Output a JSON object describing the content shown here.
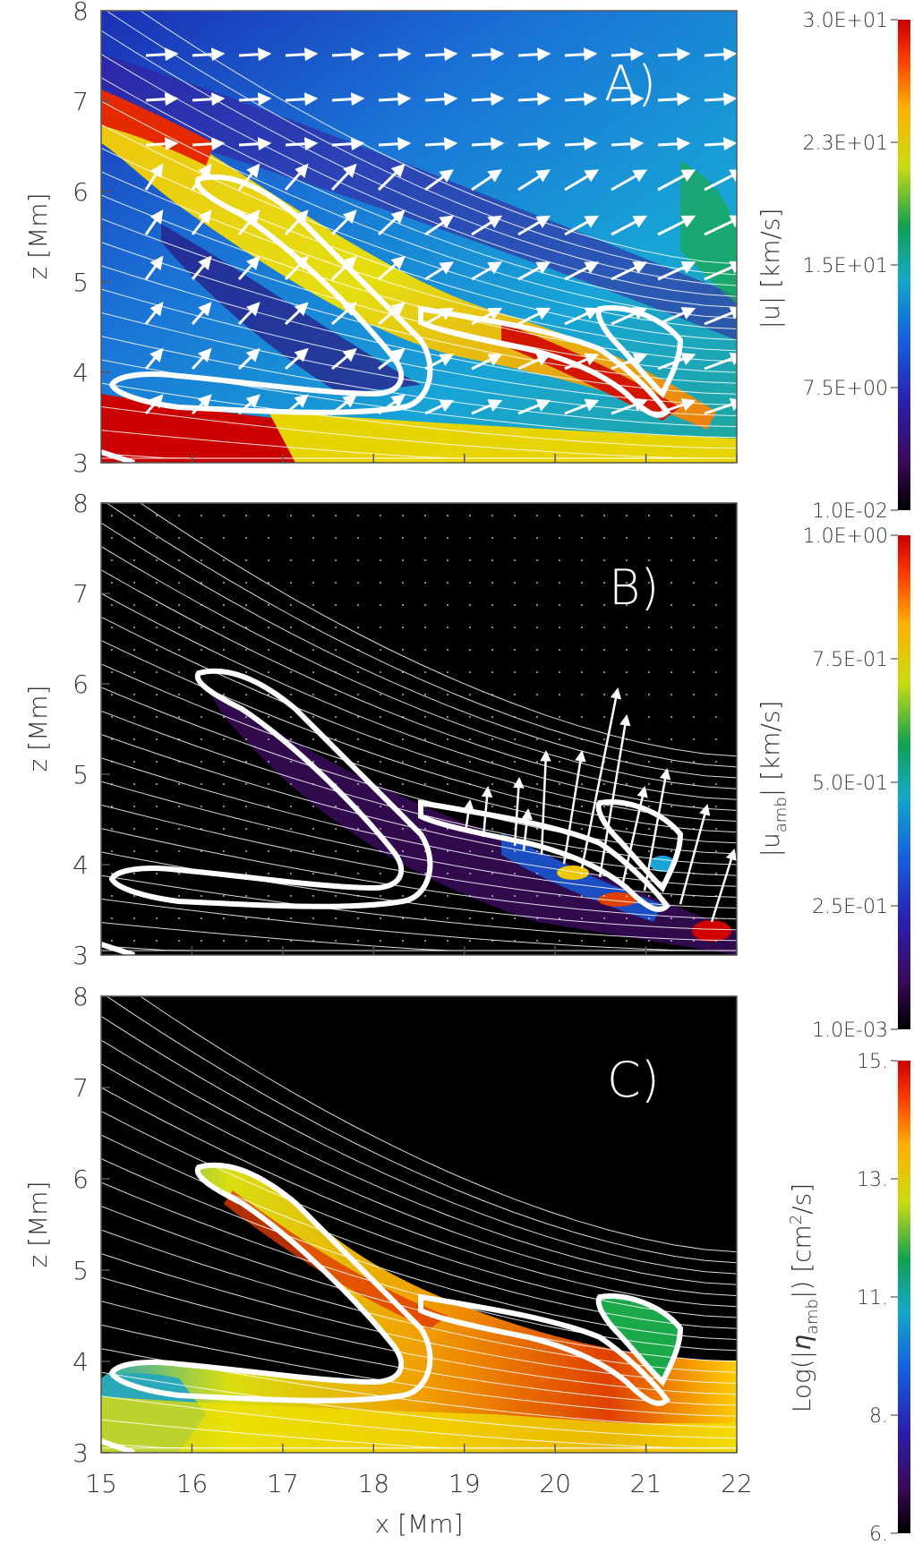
{
  "chart_data": [
    {
      "type": "heatmap",
      "panel_label": "A)",
      "xlim": [
        15,
        22
      ],
      "ylim": [
        3,
        8
      ],
      "x_ticks": [
        "15",
        "16",
        "17",
        "18",
        "19",
        "20",
        "21",
        "22"
      ],
      "y_ticks": [
        "3",
        "4",
        "5",
        "6",
        "7",
        "8"
      ],
      "ylabel": "z [Mm]",
      "colorbar": {
        "label": "|u| [km/s]",
        "ticks": [
          "3.0E+01",
          "2.3E+01",
          "1.5E+01",
          "7.5E+00",
          "1.0E-02"
        ],
        "colormap": "rainbow"
      },
      "overlays": [
        "velocity arrows",
        "magnetic field lines",
        "white contour"
      ]
    },
    {
      "type": "heatmap",
      "panel_label": "B)",
      "xlim": [
        15,
        22
      ],
      "ylim": [
        3,
        8
      ],
      "x_ticks": [
        "15",
        "16",
        "17",
        "18",
        "19",
        "20",
        "21",
        "22"
      ],
      "y_ticks": [
        "3",
        "4",
        "5",
        "6",
        "7",
        "8"
      ],
      "ylabel": "z [Mm]",
      "colorbar": {
        "label": "|u_amb| [km/s]",
        "label_main": "|u",
        "label_sub": "amb",
        "label_tail": "| [km/s]",
        "ticks": [
          "1.0E+00",
          "7.5E-01",
          "5.0E-01",
          "2.5E-01",
          "1.0E-03"
        ],
        "colormap": "rainbow"
      },
      "overlays": [
        "ambipolar velocity arrows",
        "magnetic field lines",
        "white contour"
      ]
    },
    {
      "type": "heatmap",
      "panel_label": "C)",
      "xlim": [
        15,
        22
      ],
      "ylim": [
        3,
        8
      ],
      "x_ticks": [
        "15",
        "16",
        "17",
        "18",
        "19",
        "20",
        "21",
        "22"
      ],
      "y_ticks": [
        "3",
        "4",
        "5",
        "6",
        "7",
        "8"
      ],
      "xlabel": "x [Mm]",
      "ylabel": "z [Mm]",
      "colorbar": {
        "label": "Log(|η_amb|) [cm^2/s]",
        "label_pre": "Log(|",
        "label_eta": "η",
        "label_sub": "amb",
        "label_mid": "|) [cm",
        "label_sup": "2",
        "label_tail": "/s]",
        "ticks": [
          "15.",
          "13.",
          "11.",
          "8.",
          "6."
        ],
        "colormap": "rainbow"
      },
      "overlays": [
        "magnetic field lines",
        "white contour"
      ]
    }
  ],
  "colors": {
    "contour": "#ffffff",
    "field_lines": "#ffffff",
    "panel_bg_dark": "#000000"
  }
}
